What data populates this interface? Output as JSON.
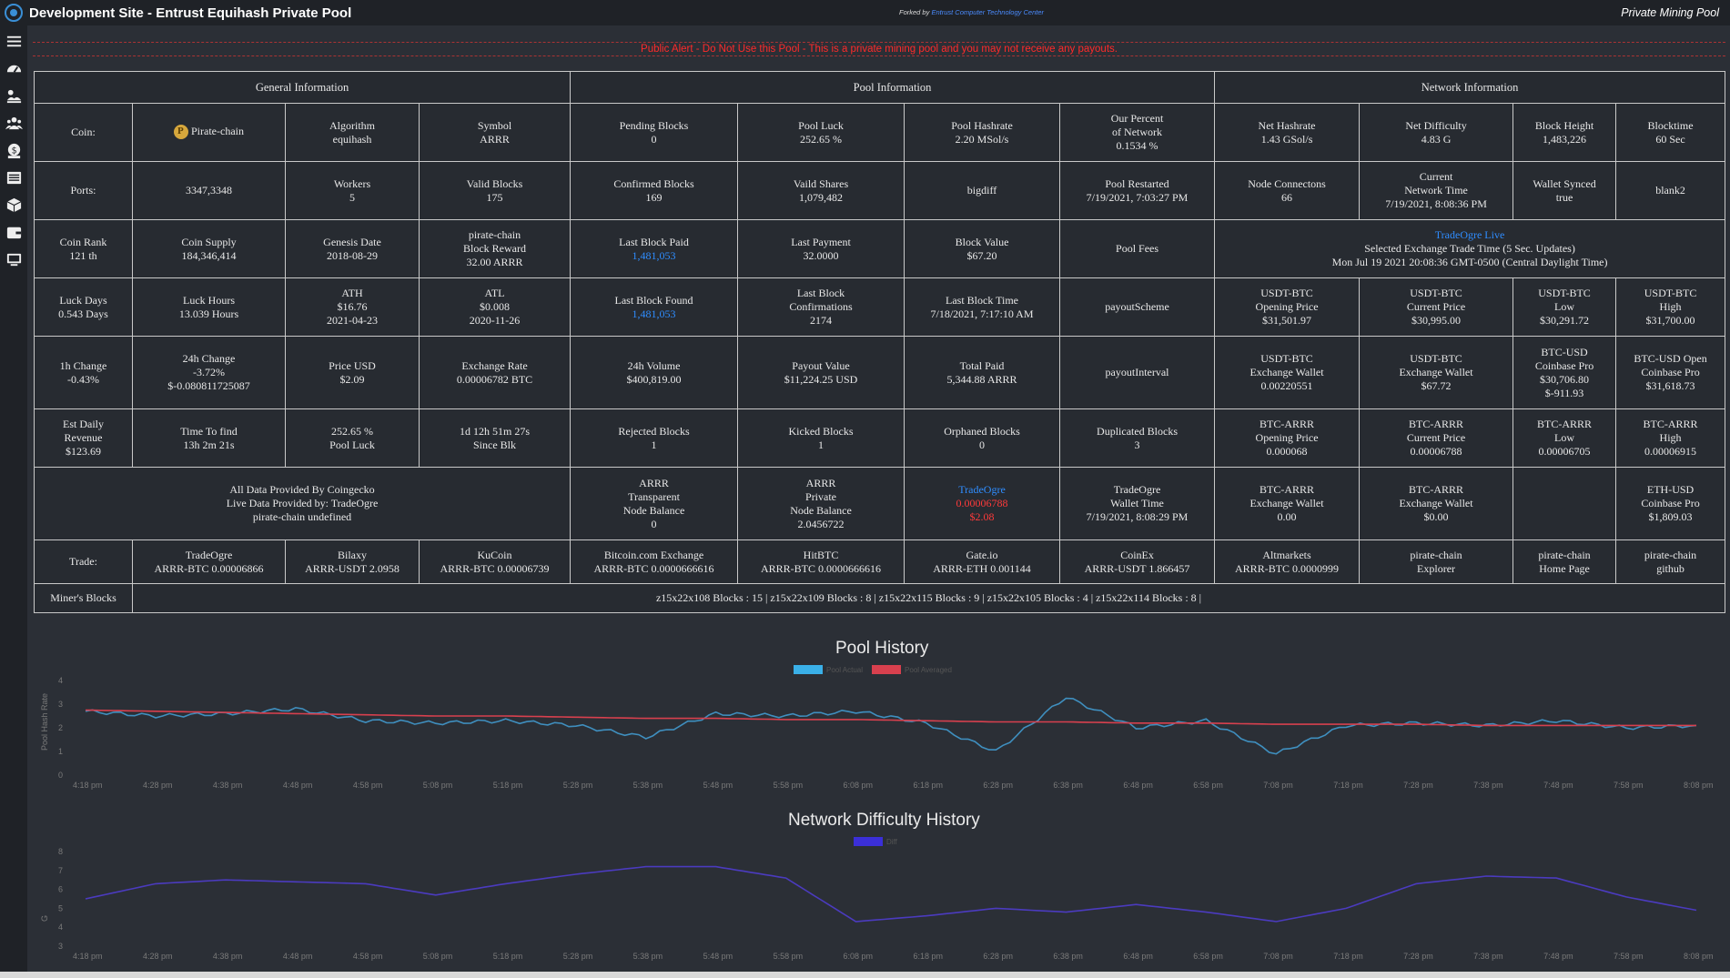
{
  "header": {
    "site_title": "Development Site - Entrust Equihash Private Pool",
    "forked_prefix": "Forked by",
    "forked_link": "Entrust Computer Technology Center",
    "right_label": "Private Mining Pool"
  },
  "sidebar": {
    "icons": [
      "menu-icon",
      "dashboard-icon",
      "miner-icon",
      "workers-icon",
      "payments-icon",
      "blocks-list-icon",
      "block-icon",
      "wallet-icon",
      "monitor-icon"
    ]
  },
  "alert": "Public Alert - Do Not Use this Pool - This is a private mining pool and you may not receive any payouts.",
  "table": {
    "headers": {
      "general": "General Information",
      "pool": "Pool Information",
      "network": "Network Information"
    },
    "r1": {
      "coin_label": "Coin:",
      "coin_name": "Pirate-chain",
      "algorithm": [
        "Algorithm",
        "equihash"
      ],
      "symbol": [
        "Symbol",
        "ARRR"
      ],
      "pending": [
        "Pending Blocks",
        "0"
      ],
      "luck": [
        "Pool Luck",
        "252.65 %"
      ],
      "hashrate": [
        "Pool Hashrate",
        "2.20 MSol/s"
      ],
      "percent": [
        "Our Percent",
        "of Network",
        "0.1534 %"
      ],
      "net_hash": [
        "Net Hashrate",
        "1.43 GSol/s"
      ],
      "net_diff": [
        "Net Difficulty",
        "4.83 G"
      ],
      "height": [
        "Block Height",
        "1,483,226"
      ],
      "blocktime": [
        "Blocktime",
        "60 Sec"
      ]
    },
    "r2": {
      "ports_label": "Ports:",
      "ports": "3347,3348",
      "workers": [
        "Workers",
        "5"
      ],
      "valid": [
        "Valid Blocks",
        "175"
      ],
      "confirmed": [
        "Confirmed Blocks",
        "169"
      ],
      "shares": [
        "Vaild Shares",
        "1,079,482"
      ],
      "bigdiff": "bigdiff",
      "restarted": [
        "Pool Restarted",
        "7/19/2021, 7:03:27 PM"
      ],
      "node_conn": [
        "Node Connectons",
        "66"
      ],
      "net_time": [
        "Current",
        "Network Time",
        "7/19/2021, 8:08:36 PM"
      ],
      "synced": [
        "Wallet Synced",
        "true"
      ],
      "blank2": "blank2"
    },
    "r3": {
      "rank": [
        "Coin Rank",
        "121 th"
      ],
      "supply": [
        "Coin Supply",
        "184,346,414"
      ],
      "genesis": [
        "Genesis Date",
        "2018-08-29"
      ],
      "reward": [
        "pirate-chain",
        "Block Reward",
        "32.00 ARRR"
      ],
      "last_paid": [
        "Last Block Paid",
        "1,481,053"
      ],
      "last_payment": [
        "Last Payment",
        "32.0000"
      ],
      "block_value": [
        "Block Value",
        "$67.20"
      ],
      "fees": "Pool Fees",
      "tradeogre_live": "TradeOgre Live",
      "trade_time": "Selected Exchange Trade Time (5 Sec. Updates)",
      "trade_date": "Mon Jul 19 2021 20:08:36 GMT-0500 (Central Daylight Time)"
    },
    "r4": {
      "luck_days": [
        "Luck Days",
        "0.543 Days"
      ],
      "luck_hours": [
        "Luck Hours",
        "13.039 Hours"
      ],
      "ath": [
        "ATH",
        "$16.76",
        "2021-04-23"
      ],
      "atl": [
        "ATL",
        "$0.008",
        "2020-11-26"
      ],
      "last_found": [
        "Last Block Found",
        "1,481,053"
      ],
      "last_conf": [
        "Last Block",
        "Confirmations",
        "2174"
      ],
      "last_time": [
        "Last Block Time",
        "7/18/2021, 7:17:10 AM"
      ],
      "scheme": "payoutScheme",
      "usdt_open": [
        "USDT-BTC",
        "Opening Price",
        "$31,501.97"
      ],
      "usdt_cur": [
        "USDT-BTC",
        "Current Price",
        "$30,995.00"
      ],
      "usdt_low": [
        "USDT-BTC",
        "Low",
        "$30,291.72"
      ],
      "usdt_high": [
        "USDT-BTC",
        "High",
        "$31,700.00"
      ]
    },
    "r5": {
      "change1h": [
        "1h Change",
        "-0.43%"
      ],
      "change24h": [
        "24h Change",
        "-3.72%",
        "$-0.080811725087"
      ],
      "price": [
        "Price USD",
        "$2.09"
      ],
      "rate": [
        "Exchange Rate",
        "0.00006782 BTC"
      ],
      "volume": [
        "24h Volume",
        "$400,819.00"
      ],
      "payout_value": [
        "Payout Value",
        "$11,224.25 USD"
      ],
      "total_paid": [
        "Total Paid",
        "5,344.88 ARRR"
      ],
      "interval": "payoutInterval",
      "usdt_wallet": [
        "USDT-BTC",
        "Exchange Wallet",
        "0.00220551"
      ],
      "usdt_wallet_usd": [
        "USDT-BTC",
        "Exchange Wallet",
        "$67.72"
      ],
      "coinbase": [
        "BTC-USD",
        "Coinbase Pro",
        "$30,706.80",
        "$-911.93"
      ],
      "coinbase_open": [
        "BTC-USD Open",
        "Coinbase Pro",
        "$31,618.73"
      ]
    },
    "r6": {
      "est": [
        "Est Daily",
        "Revenue",
        "$123.69"
      ],
      "ttf": [
        "Time To find",
        "13h 2m 21s"
      ],
      "luck": [
        "252.65 %",
        "Pool Luck"
      ],
      "since": [
        "1d 12h 51m 27s",
        "Since Blk"
      ],
      "rejected": [
        "Rejected Blocks",
        "1"
      ],
      "kicked": [
        "Kicked Blocks",
        "1"
      ],
      "orphaned": [
        "Orphaned Blocks",
        "0"
      ],
      "duplicated": [
        "Duplicated Blocks",
        "3"
      ],
      "arrr_open": [
        "BTC-ARRR",
        "Opening Price",
        "0.000068"
      ],
      "arrr_cur": [
        "BTC-ARRR",
        "Current Price",
        "0.00006788"
      ],
      "arrr_low": [
        "BTC-ARRR",
        "Low",
        "0.00006705"
      ],
      "arrr_high": [
        "BTC-ARRR",
        "High",
        "0.00006915"
      ]
    },
    "r7": {
      "provided": [
        "All Data Provided By Coingecko",
        "Live Data Provided by: TradeOgre",
        "pirate-chain undefined"
      ],
      "transparent": [
        "ARRR",
        "Transparent",
        "Node Balance",
        "0"
      ],
      "private": [
        "ARRR",
        "Private",
        "Node Balance",
        "2.0456722"
      ],
      "tradeogre": [
        "TradeOgre",
        "0.00006788",
        "$2.08"
      ],
      "wallet_time": [
        "TradeOgre",
        "Wallet Time",
        "7/19/2021, 8:08:29 PM"
      ],
      "arrr_wallet": [
        "BTC-ARRR",
        "Exchange Wallet",
        "0.00"
      ],
      "arrr_wallet_usd": [
        "BTC-ARRR",
        "Exchange Wallet",
        "$0.00"
      ],
      "eth": [
        "ETH-USD",
        "Coinbase Pro",
        "$1,809.03"
      ]
    },
    "trade": {
      "label": "Trade:",
      "links": [
        [
          "TradeOgre",
          "ARRR-BTC 0.00006866"
        ],
        [
          "Bilaxy",
          "ARRR-USDT 2.0958"
        ],
        [
          "KuCoin",
          "ARRR-BTC 0.00006739"
        ],
        [
          "Bitcoin.com Exchange",
          "ARRR-BTC 0.0000666616"
        ],
        [
          "HitBTC",
          "ARRR-BTC 0.0000666616"
        ],
        [
          "Gate.io",
          "ARRR-ETH 0.001144"
        ],
        [
          "CoinEx",
          "ARRR-USDT 1.866457"
        ],
        [
          "Altmarkets",
          "ARRR-BTC 0.0000999"
        ],
        [
          "pirate-chain",
          "Explorer"
        ],
        [
          "pirate-chain",
          "Home Page"
        ],
        [
          "pirate-chain",
          "github"
        ]
      ]
    },
    "miners": {
      "label": "Miner's Blocks",
      "value": "z15x22x108 Blocks : 15 | z15x22x109 Blocks : 8 | z15x22x115 Blocks : 9 | z15x22x105 Blocks : 4 | z15x22x114 Blocks : 8 |"
    }
  },
  "chart_data": [
    {
      "type": "line",
      "title": "Pool History",
      "ylabel": "Pool Hash Rate",
      "ylim": [
        0,
        4
      ],
      "yticks": [
        "0",
        "1",
        "2",
        "3",
        "4"
      ],
      "categories": [
        "4:18 pm",
        "4:28 pm",
        "4:38 pm",
        "4:48 pm",
        "4:58 pm",
        "5:08 pm",
        "5:18 pm",
        "5:28 pm",
        "5:38 pm",
        "5:48 pm",
        "5:58 pm",
        "6:08 pm",
        "6:18 pm",
        "6:28 pm",
        "6:38 pm",
        "6:48 pm",
        "6:58 pm",
        "7:08 pm",
        "7:18 pm",
        "7:28 pm",
        "7:38 pm",
        "7:48 pm",
        "7:58 pm",
        "8:08 pm"
      ],
      "series": [
        {
          "name": "Pool Actual",
          "color": "#3f8fbf",
          "values": [
            2.7,
            2.5,
            2.6,
            2.8,
            2.3,
            2.2,
            2.3,
            2.1,
            1.6,
            2.6,
            2.5,
            2.7,
            2.2,
            1.0,
            3.3,
            2.0,
            2.3,
            0.9,
            2.1,
            2.2,
            2.1,
            2.3,
            2.0,
            2.1
          ]
        },
        {
          "name": "Pool Averaged",
          "color": "#d8404e",
          "values": [
            2.75,
            2.7,
            2.65,
            2.6,
            2.55,
            2.5,
            2.5,
            2.45,
            2.4,
            2.4,
            2.35,
            2.35,
            2.3,
            2.25,
            2.25,
            2.2,
            2.2,
            2.15,
            2.15,
            2.15,
            2.1,
            2.1,
            2.1,
            2.1
          ]
        }
      ]
    },
    {
      "type": "line",
      "title": "Network Difficulty History",
      "ylabel": "G",
      "ylim": [
        3,
        8
      ],
      "yticks": [
        "3",
        "4",
        "5",
        "6",
        "7",
        "8"
      ],
      "categories": [
        "4:18 pm",
        "4:28 pm",
        "4:38 pm",
        "4:48 pm",
        "4:58 pm",
        "5:08 pm",
        "5:18 pm",
        "5:28 pm",
        "5:38 pm",
        "5:48 pm",
        "5:58 pm",
        "6:08 pm",
        "6:18 pm",
        "6:28 pm",
        "6:38 pm",
        "6:48 pm",
        "6:58 pm",
        "7:08 pm",
        "7:18 pm",
        "7:28 pm",
        "7:38 pm",
        "7:48 pm",
        "7:58 pm",
        "8:08 pm"
      ],
      "series": [
        {
          "name": "Diff",
          "color": "#4b3bbf",
          "values": [
            5.5,
            6.3,
            6.5,
            6.4,
            6.3,
            5.7,
            6.3,
            6.8,
            7.2,
            7.2,
            6.6,
            4.3,
            4.6,
            5.0,
            4.8,
            5.2,
            4.8,
            4.3,
            5.0,
            6.3,
            6.7,
            6.6,
            5.6,
            4.9
          ]
        }
      ]
    }
  ]
}
